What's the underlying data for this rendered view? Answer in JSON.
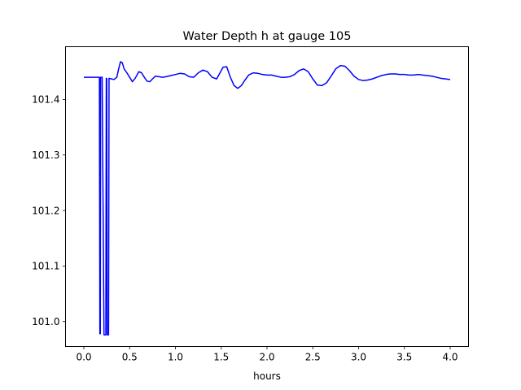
{
  "chart_data": {
    "type": "line",
    "title": "Water Depth h at gauge 105",
    "xlabel": "hours",
    "ylabel": "",
    "xlim": [
      -0.2,
      4.2
    ],
    "ylim": [
      100.955,
      101.495
    ],
    "xticks": [
      0.0,
      0.5,
      1.0,
      1.5,
      2.0,
      2.5,
      3.0,
      3.5,
      4.0
    ],
    "xtick_labels": [
      "0.0",
      "0.5",
      "1.0",
      "1.5",
      "2.0",
      "2.5",
      "3.0",
      "3.5",
      "4.0"
    ],
    "yticks": [
      101.0,
      101.1,
      101.2,
      101.3,
      101.4
    ],
    "ytick_labels": [
      "101.0",
      "101.1",
      "101.2",
      "101.3",
      "101.4"
    ],
    "grid": false,
    "legend": "none",
    "series": [
      {
        "color": "#0000ff",
        "x": [
          0.0,
          0.15,
          0.155,
          0.17,
          0.175,
          0.18,
          0.183,
          0.2,
          0.22,
          0.24,
          0.245,
          0.25,
          0.255,
          0.26,
          0.27,
          0.275,
          0.28,
          0.3,
          0.33,
          0.36,
          0.38,
          0.4,
          0.42,
          0.44,
          0.47,
          0.5,
          0.53,
          0.56,
          0.6,
          0.63,
          0.66,
          0.69,
          0.72,
          0.75,
          0.78,
          0.82,
          0.86,
          0.9,
          0.95,
          1.0,
          1.05,
          1.1,
          1.15,
          1.2,
          1.25,
          1.3,
          1.35,
          1.4,
          1.45,
          1.48,
          1.52,
          1.56,
          1.6,
          1.64,
          1.68,
          1.72,
          1.76,
          1.8,
          1.85,
          1.9,
          1.95,
          2.0,
          2.05,
          2.1,
          2.15,
          2.2,
          2.25,
          2.3,
          2.35,
          2.4,
          2.45,
          2.5,
          2.55,
          2.6,
          2.65,
          2.7,
          2.75,
          2.8,
          2.85,
          2.9,
          2.95,
          3.0,
          3.05,
          3.1,
          3.15,
          3.2,
          3.25,
          3.3,
          3.35,
          3.4,
          3.45,
          3.5,
          3.55,
          3.6,
          3.65,
          3.7,
          3.75,
          3.8,
          3.85,
          3.9,
          3.95,
          4.0
        ],
        "y": [
          101.44,
          101.44,
          101.44,
          101.44,
          100.978,
          100.978,
          101.44,
          101.44,
          100.976,
          100.976,
          101.438,
          101.438,
          100.976,
          100.976,
          100.976,
          101.438,
          101.438,
          101.437,
          101.436,
          101.44,
          101.455,
          101.468,
          101.466,
          101.455,
          101.448,
          101.44,
          101.432,
          101.438,
          101.45,
          101.448,
          101.44,
          101.433,
          101.432,
          101.437,
          101.442,
          101.441,
          101.44,
          101.441,
          101.443,
          101.445,
          101.447,
          101.446,
          101.441,
          101.44,
          101.448,
          101.453,
          101.45,
          101.44,
          101.437,
          101.446,
          101.458,
          101.459,
          101.44,
          101.425,
          101.42,
          101.425,
          101.435,
          101.444,
          101.448,
          101.447,
          101.445,
          101.444,
          101.444,
          101.442,
          101.44,
          101.44,
          101.441,
          101.445,
          101.452,
          101.455,
          101.45,
          101.437,
          101.426,
          101.425,
          101.43,
          101.442,
          101.455,
          101.461,
          101.46,
          101.452,
          101.442,
          101.436,
          101.434,
          101.435,
          101.437,
          101.44,
          101.443,
          101.445,
          101.446,
          101.446,
          101.445,
          101.445,
          101.444,
          101.444,
          101.445,
          101.444,
          101.443,
          101.442,
          101.44,
          101.438,
          101.437,
          101.436
        ]
      }
    ]
  }
}
